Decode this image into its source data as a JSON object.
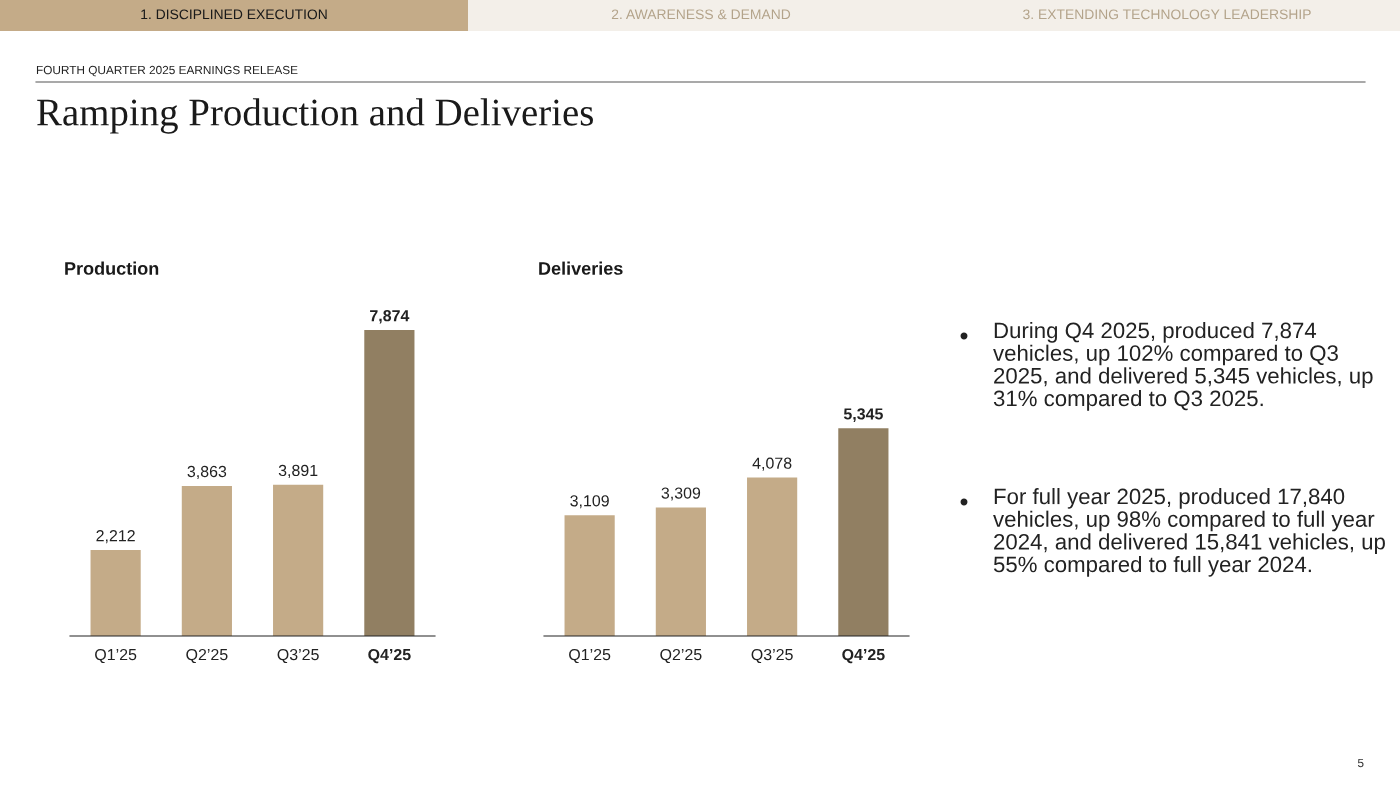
{
  "chart_data": [
    {
      "type": "other",
      "annotations": [
        "1. DISCIPLINED EXECUTION",
        "2. AWARENESS & DEMAND",
        "3. EXTENDING TECHNOLOGY LEADERSHIP",
        "FOURTH QUARTER 2025 EARNINGS RELEASE",
        "Ramping Production and Deliveries",
        "5"
      ]
    },
    {
      "type": "bar",
      "title": "Production",
      "categories": [
        "Q1’25",
        "Q2’25",
        "Q3’25",
        "Q4’25"
      ],
      "values": [
        2212,
        3863,
        3891,
        7874
      ],
      "value_labels": [
        "2,212",
        "3,863",
        "3,891",
        "7,874"
      ],
      "colors": [
        "#c4ab88",
        "#c4ab88",
        "#c4ab88",
        "#917f62"
      ]
    },
    {
      "type": "bar",
      "title": "Deliveries",
      "categories": [
        "Q1’25",
        "Q2’25",
        "Q3’25",
        "Q4’25"
      ],
      "values": [
        3109,
        3309,
        4078,
        5345
      ],
      "value_labels": [
        "3,109",
        "3,309",
        "4,078",
        "5,345"
      ],
      "colors": [
        "#c4ab88",
        "#c4ab88",
        "#c4ab88",
        "#917f62"
      ]
    },
    {
      "type": "other",
      "annotations": [
        "During Q4 2025, produced 7,874 vehicles, up 102% compared to Q3 2025, and delivered 5,345 vehicles, up 31% compared to Q3 2025.",
        "For full year 2025, produced 17,840 vehicles, up 98% compared to full year 2024, and delivered 15,841 vehicles, up 55% compared to full year 2024."
      ]
    }
  ]
}
